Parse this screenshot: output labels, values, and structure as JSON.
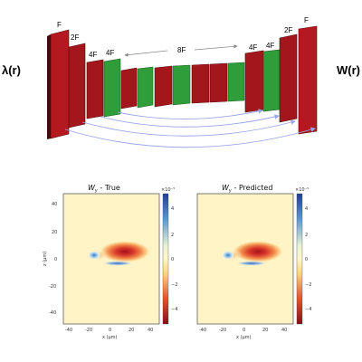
{
  "diagram": {
    "input_label": "λ(r)",
    "output_label": "W(r)",
    "block_labels": [
      "F",
      "2F",
      "4F",
      "4F",
      "8F",
      "4F",
      "4F",
      "2F",
      "F"
    ],
    "colors": {
      "conv_block": "#a3161b",
      "skip_block": "#2f9d3a",
      "skip_arrow": "#9aa6e8"
    }
  },
  "plots": {
    "left": {
      "title": "W_y - True",
      "title_main": "W",
      "title_sub": "y",
      "title_rest": " - True"
    },
    "right": {
      "title": "W_y - Predicted",
      "title_main": "W",
      "title_sub": "y",
      "title_rest": " - Predicted"
    },
    "xlabel": "x (μm)",
    "ylabel": "z (μm)",
    "xticks": [
      "-40",
      "-20",
      "0",
      "20",
      "40"
    ],
    "yticks": [
      "40",
      "20",
      "0",
      "-20",
      "-40"
    ],
    "colorbar_exponent": "×10⁻⁵",
    "colorbar_ticks": [
      "4",
      "2",
      "0",
      "-2",
      "-4"
    ],
    "colorbar_ticks_display": [
      "4",
      "2",
      "0",
      "−2",
      "−4"
    ]
  }
}
